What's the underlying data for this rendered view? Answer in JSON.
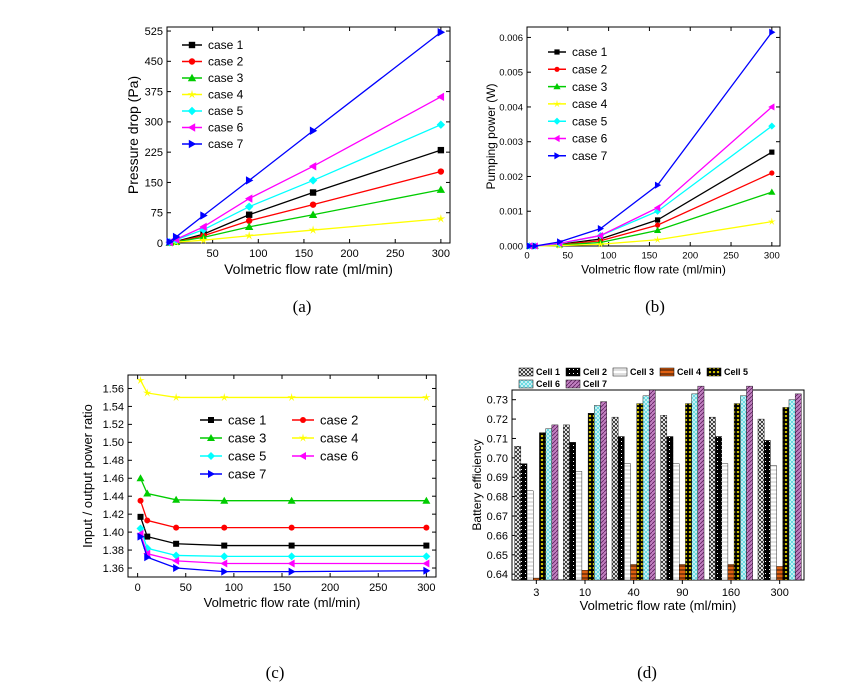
{
  "colors": [
    "#000000",
    "#ff0000",
    "#00cc00",
    "#ffff00",
    "#00ffff",
    "#ff00ff",
    "#0000ff"
  ],
  "case_names": [
    "case 1",
    "case 2",
    "case 3",
    "case 4",
    "case 5",
    "case 6",
    "case 7"
  ],
  "chart_data": [
    {
      "id": "a",
      "type": "line",
      "caption": "(a)",
      "xlabel": "Volmetric flow rate (ml/min)",
      "ylabel": "Pressure drop (Pa)",
      "xlim": [
        0,
        310
      ],
      "ylim": [
        0,
        535
      ],
      "xticks": [
        50,
        100,
        150,
        200,
        250,
        300
      ],
      "yticks": [
        0,
        75,
        150,
        225,
        300,
        375,
        450,
        525
      ],
      "x": [
        3,
        10,
        40,
        90,
        160,
        300
      ],
      "series": [
        {
          "name": "case 1",
          "values": [
            1,
            4,
            22,
            70,
            125,
            230
          ]
        },
        {
          "name": "case 2",
          "values": [
            1,
            3,
            18,
            55,
            95,
            177
          ]
        },
        {
          "name": "case 3",
          "values": [
            1,
            3,
            14,
            40,
            70,
            132
          ]
        },
        {
          "name": "case 4",
          "values": [
            0.5,
            2,
            7,
            18,
            32,
            60
          ]
        },
        {
          "name": "case 5",
          "values": [
            2,
            8,
            33,
            90,
            155,
            293
          ]
        },
        {
          "name": "case 6",
          "values": [
            2,
            9,
            40,
            110,
            190,
            362
          ]
        },
        {
          "name": "case 7",
          "values": [
            3,
            15,
            68,
            155,
            278,
            522
          ]
        }
      ]
    },
    {
      "id": "b",
      "type": "line",
      "caption": "(b)",
      "xlabel": "Volmetric flow rate (ml/min)",
      "ylabel": "Pumping power (W)",
      "xlim": [
        0,
        310
      ],
      "ylim": [
        0,
        0.0063
      ],
      "xticks": [
        0,
        50,
        100,
        150,
        200,
        250,
        300
      ],
      "yticks": [
        0.0,
        0.001,
        0.002,
        0.003,
        0.004,
        0.005,
        0.006
      ],
      "ytick_labels": [
        "0.000",
        "0.001",
        "0.002",
        "0.003",
        "0.004",
        "0.005",
        "0.006"
      ],
      "x": [
        3,
        10,
        40,
        90,
        160,
        300
      ],
      "series": [
        {
          "name": "case 1",
          "values": [
            0.0,
            0.0,
            5e-05,
            0.0002,
            0.00075,
            0.0027
          ]
        },
        {
          "name": "case 2",
          "values": [
            0.0,
            0.0,
            4e-05,
            0.00015,
            0.0006,
            0.0021
          ]
        },
        {
          "name": "case 3",
          "values": [
            0.0,
            0.0,
            3e-05,
            0.0001,
            0.00045,
            0.00155
          ]
        },
        {
          "name": "case 4",
          "values": [
            0.0,
            0.0,
            1e-05,
            5e-05,
            0.00018,
            0.0007
          ]
        },
        {
          "name": "case 5",
          "values": [
            0.0,
            0.0,
            7e-05,
            0.0003,
            0.001,
            0.00345
          ]
        },
        {
          "name": "case 6",
          "values": [
            0.0,
            0.0,
            8e-05,
            0.0003,
            0.0011,
            0.004
          ]
        },
        {
          "name": "case 7",
          "values": [
            0.0,
            0.0,
            0.00012,
            0.0005,
            0.00175,
            0.00615
          ]
        }
      ]
    },
    {
      "id": "c",
      "type": "line",
      "caption": "(c)",
      "xlabel": "Volmetric flow rate (ml/min)",
      "ylabel": "Input / output power ratio",
      "xlim": [
        -10,
        310
      ],
      "ylim": [
        1.35,
        1.575
      ],
      "xticks": [
        0,
        50,
        100,
        150,
        200,
        250,
        300
      ],
      "yticks": [
        1.36,
        1.38,
        1.4,
        1.42,
        1.44,
        1.46,
        1.48,
        1.5,
        1.52,
        1.54,
        1.56
      ],
      "ytick_labels": [
        "1.36",
        "1.38",
        "1.40",
        "1.42",
        "1.44",
        "1.46",
        "1.48",
        "1.50",
        "1.52",
        "1.54",
        "1.56"
      ],
      "x": [
        3,
        10,
        40,
        90,
        160,
        300
      ],
      "series": [
        {
          "name": "case 1",
          "values": [
            1.417,
            1.395,
            1.387,
            1.385,
            1.385,
            1.385
          ]
        },
        {
          "name": "case 2",
          "values": [
            1.435,
            1.413,
            1.405,
            1.405,
            1.405,
            1.405
          ]
        },
        {
          "name": "case 3",
          "values": [
            1.46,
            1.443,
            1.436,
            1.435,
            1.435,
            1.435
          ]
        },
        {
          "name": "case 4",
          "values": [
            1.569,
            1.555,
            1.55,
            1.55,
            1.55,
            1.55
          ]
        },
        {
          "name": "case 5",
          "values": [
            1.404,
            1.382,
            1.374,
            1.373,
            1.373,
            1.373
          ]
        },
        {
          "name": "case 6",
          "values": [
            1.398,
            1.376,
            1.368,
            1.365,
            1.365,
            1.365
          ]
        },
        {
          "name": "case 7",
          "values": [
            1.395,
            1.372,
            1.36,
            1.356,
            1.356,
            1.357
          ]
        }
      ]
    },
    {
      "id": "d",
      "type": "bar",
      "caption": "(d)",
      "xlabel": "Volmetric flow rate (ml/min)",
      "ylabel": "Battery efficiency",
      "ylim": [
        0.637,
        0.735
      ],
      "yticks": [
        0.64,
        0.65,
        0.66,
        0.67,
        0.68,
        0.69,
        0.7,
        0.71,
        0.72,
        0.73
      ],
      "ytick_labels": [
        "0.64",
        "0.65",
        "0.66",
        "0.67",
        "0.68",
        "0.69",
        "0.70",
        "0.71",
        "0.72",
        "0.73"
      ],
      "categories": [
        "3",
        "10",
        "40",
        "90",
        "160",
        "300"
      ],
      "series": [
        {
          "name": "Cell 1",
          "values": [
            0.706,
            0.717,
            0.721,
            0.722,
            0.721,
            0.72
          ]
        },
        {
          "name": "Cell 2",
          "values": [
            0.697,
            0.708,
            0.711,
            0.711,
            0.711,
            0.709
          ]
        },
        {
          "name": "Cell 3",
          "values": [
            0.683,
            0.693,
            0.697,
            0.697,
            0.697,
            0.696
          ]
        },
        {
          "name": "Cell 4",
          "values": [
            0.638,
            0.642,
            0.645,
            0.645,
            0.645,
            0.644
          ]
        },
        {
          "name": "Cell 5",
          "values": [
            0.713,
            0.723,
            0.728,
            0.728,
            0.728,
            0.726
          ]
        },
        {
          "name": "Cell 6",
          "values": [
            0.715,
            0.727,
            0.732,
            0.733,
            0.732,
            0.73
          ]
        },
        {
          "name": "Cell 7",
          "values": [
            0.717,
            0.729,
            0.735,
            0.737,
            0.737,
            0.733
          ]
        }
      ]
    }
  ]
}
